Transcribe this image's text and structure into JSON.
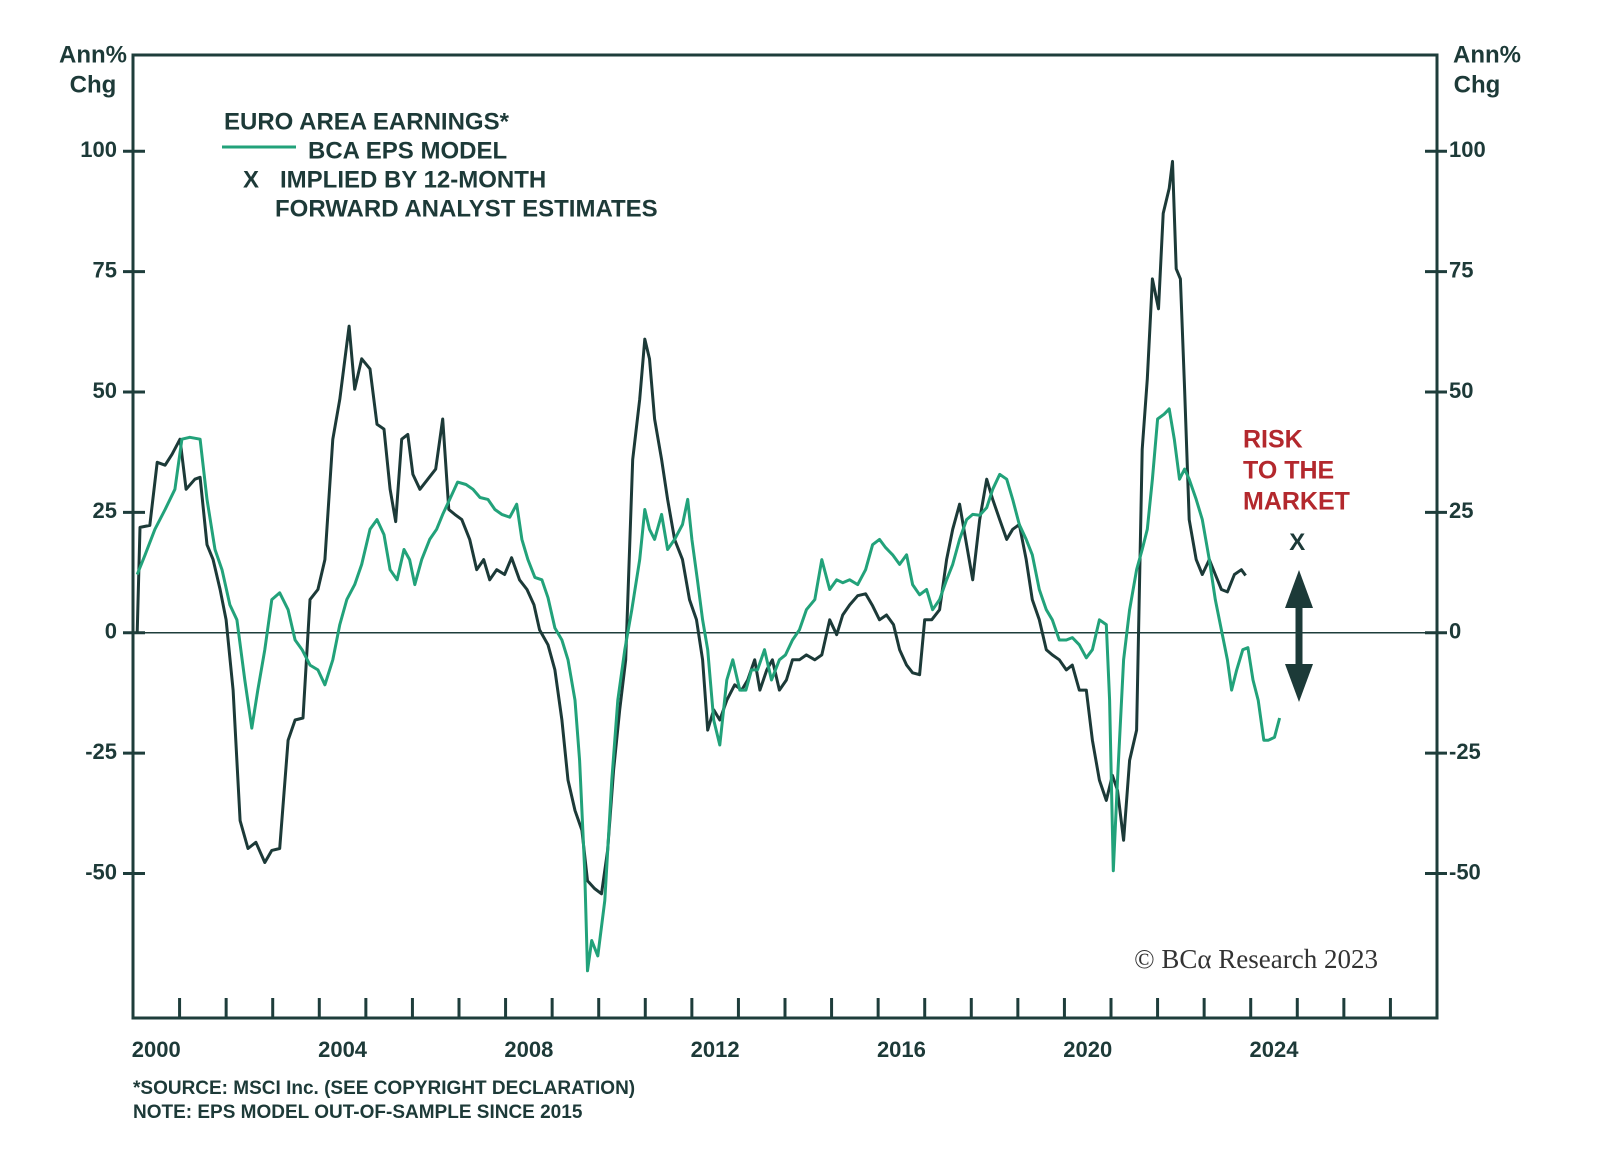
{
  "chart_data": {
    "type": "line",
    "y_axis_label_lines": [
      "Ann%",
      "Chg"
    ],
    "y2_axis_label_lines": [
      "Ann%",
      "Chg"
    ],
    "xlim": [
      2000,
      2028
    ],
    "ylim": [
      -80,
      120
    ],
    "y2lim": [
      -80,
      120
    ],
    "yticks": [
      -50,
      -25,
      0,
      25,
      50,
      75,
      100
    ],
    "y2ticks": [
      -50,
      -25,
      0,
      25,
      50,
      75,
      100
    ],
    "xticks": [
      {
        "value": 2000.5,
        "label": "2000"
      },
      {
        "value": 2004.5,
        "label": "2004"
      },
      {
        "value": 2008.5,
        "label": "2008"
      },
      {
        "value": 2012.5,
        "label": "2012"
      },
      {
        "value": 2016.5,
        "label": "2016"
      },
      {
        "value": 2020.5,
        "label": "2020"
      },
      {
        "value": 2024.5,
        "label": "2024"
      }
    ],
    "x_minor_ticks": [
      2001,
      2002,
      2003,
      2004,
      2005,
      2006,
      2007,
      2008,
      2009,
      2010,
      2011,
      2012,
      2013,
      2014,
      2015,
      2016,
      2017,
      2018,
      2019,
      2020,
      2021,
      2022,
      2023,
      2024,
      2025,
      2026,
      2027
    ],
    "zero_line": 0,
    "legend_title": "EURO AREA EARNINGS*",
    "series": [
      {
        "name": "EURO AREA EARNINGS*",
        "color": "#1c3a38",
        "x": [
          2000.09,
          2000.15,
          2000.36,
          2000.52,
          2000.69,
          2000.84,
          2001.01,
          2001.14,
          2001.33,
          2001.44,
          2001.59,
          2001.72,
          2001.87,
          2002.0,
          2002.15,
          2002.3,
          2002.47,
          2002.64,
          2002.83,
          2002.98,
          2003.15,
          2003.33,
          2003.48,
          2003.65,
          2003.8,
          2003.97,
          2004.12,
          2004.29,
          2004.44,
          2004.64,
          2004.76,
          2004.91,
          2005.09,
          2005.24,
          2005.39,
          2005.52,
          2005.64,
          2005.77,
          2005.9,
          2006.01,
          2006.16,
          2006.33,
          2006.5,
          2006.65,
          2006.78,
          2006.91,
          2007.06,
          2007.23,
          2007.38,
          2007.53,
          2007.66,
          2007.81,
          2007.98,
          2008.13,
          2008.3,
          2008.46,
          2008.61,
          2008.73,
          2008.91,
          2009.06,
          2009.21,
          2009.34,
          2009.49,
          2009.64,
          2009.76,
          2009.91,
          2010.06,
          2010.19,
          2010.32,
          2010.45,
          2010.58,
          2010.73,
          2010.88,
          2010.99,
          2011.09,
          2011.2,
          2011.35,
          2011.48,
          2011.63,
          2011.8,
          2011.95,
          2012.1,
          2012.23,
          2012.34,
          2012.47,
          2012.6,
          2012.75,
          2012.92,
          2013.07,
          2013.2,
          2013.35,
          2013.46,
          2013.61,
          2013.73,
          2013.88,
          2014.03,
          2014.16,
          2014.31,
          2014.46,
          2014.64,
          2014.79,
          2014.96,
          2015.11,
          2015.24,
          2015.39,
          2015.56,
          2015.73,
          2015.88,
          2016.03,
          2016.18,
          2016.33,
          2016.46,
          2016.61,
          2016.74,
          2016.89,
          2017.0,
          2017.15,
          2017.32,
          2017.47,
          2017.6,
          2017.75,
          2017.9,
          2018.03,
          2018.18,
          2018.33,
          2018.46,
          2018.61,
          2018.76,
          2018.89,
          2019.03,
          2019.18,
          2019.31,
          2019.46,
          2019.61,
          2019.74,
          2019.89,
          2020.04,
          2020.17,
          2020.32,
          2020.47,
          2020.6,
          2020.75,
          2020.9,
          2021.03,
          2021.14,
          2021.27,
          2021.4,
          2021.55,
          2021.67,
          2021.78,
          2021.89,
          2022.02,
          2022.12,
          2022.25,
          2022.32,
          2022.4,
          2022.49,
          2022.58,
          2022.68,
          2022.83,
          2022.96,
          2023.11,
          2023.24,
          2023.37,
          2023.5,
          2023.65,
          2023.8,
          2023.89
        ],
        "values": [
          0,
          21.9,
          22.3,
          35.4,
          34.8,
          37.1,
          40.2,
          29.8,
          31.9,
          32.3,
          18.3,
          15.2,
          9.0,
          2.7,
          -11.9,
          -39.0,
          -44.8,
          -43.5,
          -47.7,
          -45.2,
          -44.8,
          -22.3,
          -18.1,
          -17.7,
          6.9,
          9.0,
          15.2,
          40.2,
          48.5,
          63.7,
          50.6,
          56.9,
          54.8,
          43.3,
          42.3,
          29.8,
          23.1,
          40.2,
          41.2,
          32.9,
          29.8,
          31.9,
          34.0,
          44.4,
          25.6,
          24.6,
          23.5,
          19.4,
          13.1,
          15.2,
          11.0,
          13.1,
          12.1,
          15.6,
          11.0,
          9.0,
          5.8,
          0.6,
          -2.5,
          -7.7,
          -18.1,
          -30.6,
          -36.9,
          -41.0,
          -51.5,
          -53.1,
          -54.2,
          -45.2,
          -28.5,
          -16.0,
          -5.6,
          36.0,
          48.5,
          61.0,
          56.9,
          44.4,
          36.0,
          27.7,
          19.4,
          15.2,
          6.9,
          2.7,
          -5.6,
          -20.2,
          -16.0,
          -18.1,
          -14.0,
          -10.8,
          -11.9,
          -9.8,
          -5.6,
          -11.9,
          -7.7,
          -5.6,
          -11.9,
          -9.8,
          -5.6,
          -5.6,
          -4.6,
          -5.6,
          -4.6,
          2.7,
          -0.4,
          3.7,
          5.8,
          7.7,
          8.1,
          5.6,
          2.7,
          3.7,
          1.7,
          -3.5,
          -6.7,
          -8.3,
          -8.7,
          2.7,
          2.7,
          4.8,
          15.2,
          21.5,
          26.7,
          18.3,
          11.0,
          23.5,
          31.9,
          27.7,
          23.5,
          19.4,
          21.5,
          22.5,
          15.2,
          6.9,
          2.7,
          -3.5,
          -4.6,
          -5.6,
          -7.7,
          -6.7,
          -11.9,
          -11.9,
          -22.3,
          -30.6,
          -34.8,
          -29.6,
          -32.7,
          -43.1,
          -26.5,
          -20.2,
          38.1,
          52.7,
          73.5,
          67.3,
          87.1,
          92.3,
          97.9,
          75.6,
          73.5,
          50.6,
          23.5,
          15.2,
          12.1,
          15.2,
          12.1,
          9.0,
          8.5,
          12.1,
          13.1,
          11.9
        ]
      },
      {
        "name": "BCA EPS MODEL",
        "color": "#22a27a",
        "x": [
          2000.09,
          2000.26,
          2000.47,
          2000.69,
          2000.9,
          2001.05,
          2001.22,
          2001.44,
          2001.59,
          2001.76,
          2001.91,
          2002.08,
          2002.23,
          2002.4,
          2002.55,
          2002.68,
          2002.83,
          2002.98,
          2003.15,
          2003.33,
          2003.48,
          2003.63,
          2003.8,
          2003.97,
          2004.12,
          2004.29,
          2004.44,
          2004.59,
          2004.76,
          2004.91,
          2005.09,
          2005.24,
          2005.39,
          2005.52,
          2005.67,
          2005.82,
          2005.94,
          2006.05,
          2006.2,
          2006.37,
          2006.52,
          2006.65,
          2006.8,
          2006.97,
          2007.15,
          2007.3,
          2007.45,
          2007.62,
          2007.77,
          2007.92,
          2008.09,
          2008.24,
          2008.35,
          2008.48,
          2008.63,
          2008.78,
          2008.91,
          2009.06,
          2009.21,
          2009.34,
          2009.49,
          2009.59,
          2009.7,
          2009.76,
          2009.85,
          2009.98,
          2010.13,
          2010.28,
          2010.41,
          2010.56,
          2010.71,
          2010.88,
          2010.99,
          2011.09,
          2011.2,
          2011.35,
          2011.48,
          2011.63,
          2011.8,
          2011.91,
          2012.0,
          2012.12,
          2012.23,
          2012.34,
          2012.47,
          2012.6,
          2012.75,
          2012.88,
          2013.03,
          2013.16,
          2013.28,
          2013.41,
          2013.56,
          2013.71,
          2013.88,
          2014.01,
          2014.16,
          2014.31,
          2014.46,
          2014.64,
          2014.79,
          2014.96,
          2015.11,
          2015.24,
          2015.39,
          2015.56,
          2015.73,
          2015.88,
          2016.03,
          2016.16,
          2016.31,
          2016.46,
          2016.61,
          2016.74,
          2016.89,
          2017.04,
          2017.17,
          2017.32,
          2017.47,
          2017.6,
          2017.75,
          2017.9,
          2018.03,
          2018.18,
          2018.33,
          2018.46,
          2018.61,
          2018.76,
          2018.89,
          2019.03,
          2019.18,
          2019.31,
          2019.46,
          2019.61,
          2019.74,
          2019.89,
          2020.04,
          2020.17,
          2020.32,
          2020.47,
          2020.6,
          2020.75,
          2020.9,
          2020.97,
          2021.05,
          2021.14,
          2021.27,
          2021.4,
          2021.55,
          2021.67,
          2021.78,
          2021.89,
          2022.0,
          2022.14,
          2022.25,
          2022.36,
          2022.47,
          2022.58,
          2022.68,
          2022.83,
          2022.96,
          2023.11,
          2023.24,
          2023.37,
          2023.5,
          2023.59,
          2023.7,
          2023.83,
          2023.94,
          2024.05,
          2024.16,
          2024.28,
          2024.38,
          2024.51,
          2024.62
        ],
        "values": [
          12.1,
          16.2,
          21.5,
          25.6,
          29.8,
          40.2,
          40.6,
          40.2,
          27.7,
          17.3,
          13.1,
          5.8,
          2.7,
          -9.8,
          -19.8,
          -11.9,
          -3.5,
          6.9,
          8.3,
          4.8,
          -1.5,
          -3.5,
          -6.7,
          -7.7,
          -10.8,
          -5.6,
          1.7,
          6.9,
          10.0,
          14.2,
          21.5,
          23.5,
          20.4,
          13.1,
          11.0,
          17.3,
          15.2,
          10.0,
          15.2,
          19.4,
          21.5,
          24.6,
          27.7,
          31.3,
          30.8,
          29.8,
          28.1,
          27.7,
          25.6,
          24.6,
          24.0,
          26.7,
          19.4,
          15.2,
          11.5,
          11.0,
          7.3,
          1.0,
          -1.5,
          -5.6,
          -14.0,
          -26.5,
          -49.4,
          -70.2,
          -63.9,
          -67.1,
          -55.6,
          -30.6,
          -14.0,
          -3.5,
          4.8,
          15.2,
          25.6,
          21.5,
          19.4,
          24.6,
          17.3,
          19.4,
          22.5,
          27.7,
          19.4,
          11.0,
          2.7,
          -3.5,
          -18.1,
          -23.3,
          -9.8,
          -5.6,
          -11.9,
          -11.9,
          -7.7,
          -7.7,
          -3.5,
          -9.8,
          -5.6,
          -4.6,
          -1.5,
          0.6,
          4.8,
          6.9,
          15.2,
          9.0,
          11.0,
          10.4,
          11.0,
          10.0,
          13.1,
          18.3,
          19.4,
          17.7,
          16.2,
          14.2,
          16.2,
          10.0,
          7.9,
          9.0,
          4.8,
          6.9,
          11.0,
          14.2,
          19.4,
          23.5,
          24.6,
          24.4,
          26.0,
          29.8,
          32.9,
          31.9,
          27.7,
          22.5,
          19.4,
          16.2,
          9.0,
          4.8,
          2.7,
          -1.5,
          -1.5,
          -1.0,
          -2.5,
          -5.2,
          -3.5,
          2.7,
          1.7,
          -14.0,
          -49.4,
          -30.6,
          -5.6,
          4.8,
          13.1,
          17.3,
          21.5,
          31.9,
          44.4,
          45.4,
          46.5,
          40.2,
          31.9,
          34.0,
          31.9,
          27.7,
          23.5,
          15.2,
          6.9,
          0.6,
          -5.6,
          -11.9,
          -7.7,
          -3.5,
          -3.1,
          -9.8,
          -14.0,
          -22.3,
          -22.3,
          -21.7,
          -17.7
        ]
      },
      {
        "name_lines": [
          "IMPLIED BY 12-MONTH",
          "FORWARD ANALYST ESTIMATES"
        ],
        "marker": "X",
        "color": "#1c3a38",
        "x": [
          2025.0
        ],
        "values": [
          18.5
        ]
      }
    ],
    "annotation_lines": [
      "RISK",
      "TO THE",
      "MARKET"
    ],
    "copyright": "© BCα Research 2023",
    "footnotes": [
      "*SOURCE: MSCI Inc. (SEE COPYRIGHT DECLARATION)",
      "NOTE: EPS MODEL OUT-OF-SAMPLE SINCE 2015"
    ]
  }
}
